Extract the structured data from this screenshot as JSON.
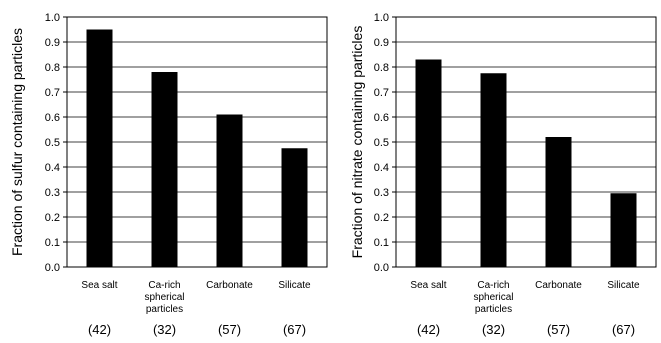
{
  "chart_data": [
    {
      "type": "bar",
      "ylabel": "Fraction of sulfur containing particles",
      "xlabel": "",
      "ylim": [
        0,
        1.0
      ],
      "yticks": [
        "0.0",
        "0.1",
        "0.2",
        "0.3",
        "0.4",
        "0.5",
        "0.6",
        "0.7",
        "0.8",
        "0.9",
        "1.0"
      ],
      "grid": true,
      "categories": [
        [
          "Sea salt"
        ],
        [
          "Ca-rich",
          "spherical",
          "particles"
        ],
        [
          "Carbonate"
        ],
        [
          "Silicate"
        ]
      ],
      "counts": [
        "(42)",
        "(32)",
        "(57)",
        "(67)"
      ],
      "values": [
        0.95,
        0.78,
        0.61,
        0.475
      ],
      "bar_color": "#000000"
    },
    {
      "type": "bar",
      "ylabel": "Fraction of nitrate containing particles",
      "xlabel": "",
      "ylim": [
        0,
        1.0
      ],
      "yticks": [
        "0.0",
        "0.1",
        "0.2",
        "0.3",
        "0.4",
        "0.5",
        "0.6",
        "0.7",
        "0.8",
        "0.9",
        "1.0"
      ],
      "grid": true,
      "categories": [
        [
          "Sea salt"
        ],
        [
          "Ca-rich",
          "spherical",
          "particles"
        ],
        [
          "Carbonate"
        ],
        [
          "Silicate"
        ]
      ],
      "counts": [
        "(42)",
        "(32)",
        "(57)",
        "(67)"
      ],
      "values": [
        0.83,
        0.775,
        0.52,
        0.295
      ],
      "bar_color": "#000000"
    }
  ]
}
